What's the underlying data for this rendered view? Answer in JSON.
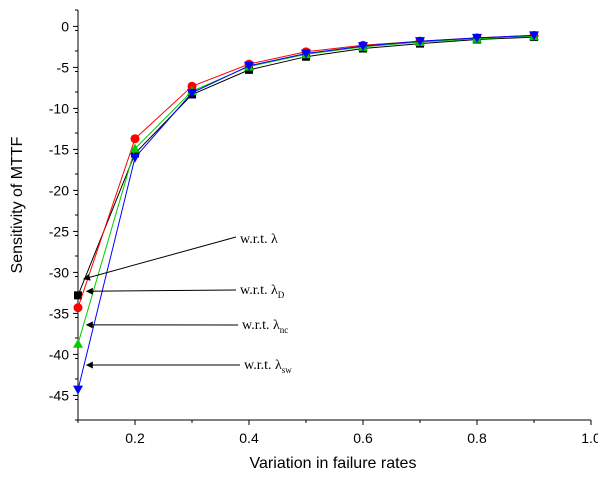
{
  "chart_data": {
    "type": "line",
    "title": "",
    "xlabel": "Variation in failure rates",
    "ylabel": "Sensitivity of MTTF",
    "xlim": [
      0.1,
      1.0
    ],
    "ylim": [
      -48,
      2
    ],
    "x_ticks": [
      0.2,
      0.4,
      0.6,
      0.8,
      1.0
    ],
    "x_tick_labels": [
      "0.2",
      "0.4",
      "0.6",
      "0.8",
      "1.0"
    ],
    "y_ticks": [
      0,
      -5,
      -10,
      -15,
      -20,
      -25,
      -30,
      -35,
      -40,
      -45
    ],
    "y_tick_labels": [
      "0",
      "-5",
      "-10",
      "-15",
      "-20",
      "-25",
      "-30",
      "-35",
      "-40",
      "-45"
    ],
    "grid": false,
    "x": [
      0.1,
      0.2,
      0.3,
      0.4,
      0.5,
      0.6,
      0.7,
      0.8,
      0.9
    ],
    "series": [
      {
        "color": "#000000",
        "marker": "square",
        "values": [
          -32.8,
          -15.5,
          -8.3,
          -5.3,
          -3.7,
          -2.7,
          -2.1,
          -1.6,
          -1.3
        ]
      },
      {
        "color": "#ff0000",
        "marker": "circle",
        "values": [
          -34.3,
          -13.7,
          -7.3,
          -4.6,
          -3.1,
          -2.3,
          -1.8,
          -1.4,
          -1.1
        ]
      },
      {
        "color": "#00cc00",
        "marker": "triangle-up",
        "values": [
          -38.7,
          -14.9,
          -7.9,
          -4.9,
          -3.4,
          -2.5,
          -1.9,
          -1.5,
          -1.2
        ]
      },
      {
        "color": "#0000ff",
        "marker": "triangle-down",
        "values": [
          -44.3,
          -16.0,
          -8.1,
          -4.8,
          -3.3,
          -2.4,
          -1.8,
          -1.4,
          -1.1
        ]
      }
    ],
    "annotations": [
      {
        "text": "w.r.t. λ",
        "sub": "",
        "target_x": 0.11,
        "target_y": -30.8
      },
      {
        "text": "w.r.t. λ",
        "sub": "D",
        "target_x": 0.115,
        "target_y": -32.3
      },
      {
        "text": "w.r.t. λ",
        "sub": "nc",
        "target_x": 0.115,
        "target_y": -36.4
      },
      {
        "text": "w.r.t. λ",
        "sub": "sw",
        "target_x": 0.115,
        "target_y": -41.3
      }
    ]
  }
}
